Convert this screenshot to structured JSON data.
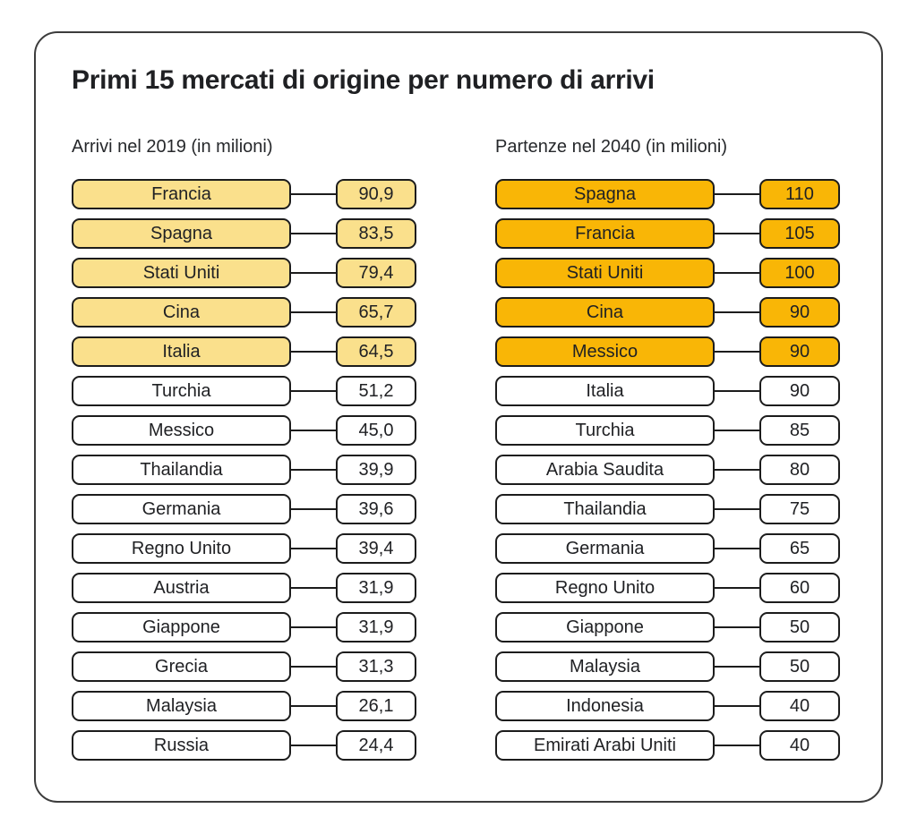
{
  "title": "Primi 15 mercati di origine per numero di arrivi",
  "colors": {
    "left_highlight": "#fae08c",
    "right_highlight": "#f9b606",
    "box_border": "#1c1c1c",
    "card_border": "#3c3c3c",
    "text": "#202124",
    "background": "#ffffff"
  },
  "chart_data": {
    "type": "table",
    "title": "Primi 15 mercati di origine per numero di arrivi",
    "layout": "two ranked columns, label box connected to value box by a line, top 5 rows highlighted in each column",
    "columns": [
      {
        "header": "Arrivi nel 2019 (in milioni)",
        "highlight_count": 5,
        "highlight_color": "#fae08c",
        "rows": [
          {
            "label": "Francia",
            "value": "90,9",
            "value_numeric": 90.9
          },
          {
            "label": "Spagna",
            "value": "83,5",
            "value_numeric": 83.5
          },
          {
            "label": "Stati Uniti",
            "value": "79,4",
            "value_numeric": 79.4
          },
          {
            "label": "Cina",
            "value": "65,7",
            "value_numeric": 65.7
          },
          {
            "label": "Italia",
            "value": "64,5",
            "value_numeric": 64.5
          },
          {
            "label": "Turchia",
            "value": "51,2",
            "value_numeric": 51.2
          },
          {
            "label": "Messico",
            "value": "45,0",
            "value_numeric": 45.0
          },
          {
            "label": "Thailandia",
            "value": "39,9",
            "value_numeric": 39.9
          },
          {
            "label": "Germania",
            "value": "39,6",
            "value_numeric": 39.6
          },
          {
            "label": "Regno Unito",
            "value": "39,4",
            "value_numeric": 39.4
          },
          {
            "label": "Austria",
            "value": "31,9",
            "value_numeric": 31.9
          },
          {
            "label": "Giappone",
            "value": "31,9",
            "value_numeric": 31.9
          },
          {
            "label": "Grecia",
            "value": "31,3",
            "value_numeric": 31.3
          },
          {
            "label": "Malaysia",
            "value": "26,1",
            "value_numeric": 26.1
          },
          {
            "label": "Russia",
            "value": "24,4",
            "value_numeric": 24.4
          }
        ]
      },
      {
        "header": "Partenze nel 2040 (in milioni)",
        "highlight_count": 5,
        "highlight_color": "#f9b606",
        "rows": [
          {
            "label": "Spagna",
            "value": "110",
            "value_numeric": 110
          },
          {
            "label": "Francia",
            "value": "105",
            "value_numeric": 105
          },
          {
            "label": "Stati Uniti",
            "value": "100",
            "value_numeric": 100
          },
          {
            "label": "Cina",
            "value": "90",
            "value_numeric": 90
          },
          {
            "label": "Messico",
            "value": "90",
            "value_numeric": 90
          },
          {
            "label": "Italia",
            "value": "90",
            "value_numeric": 90
          },
          {
            "label": "Turchia",
            "value": "85",
            "value_numeric": 85
          },
          {
            "label": "Arabia Saudita",
            "value": "80",
            "value_numeric": 80
          },
          {
            "label": "Thailandia",
            "value": "75",
            "value_numeric": 75
          },
          {
            "label": "Germania",
            "value": "65",
            "value_numeric": 65
          },
          {
            "label": "Regno Unito",
            "value": "60",
            "value_numeric": 60
          },
          {
            "label": "Giappone",
            "value": "50",
            "value_numeric": 50
          },
          {
            "label": "Malaysia",
            "value": "50",
            "value_numeric": 50
          },
          {
            "label": "Indonesia",
            "value": "40",
            "value_numeric": 40
          },
          {
            "label": "Emirati Arabi Uniti",
            "value": "40",
            "value_numeric": 40
          }
        ]
      }
    ]
  }
}
